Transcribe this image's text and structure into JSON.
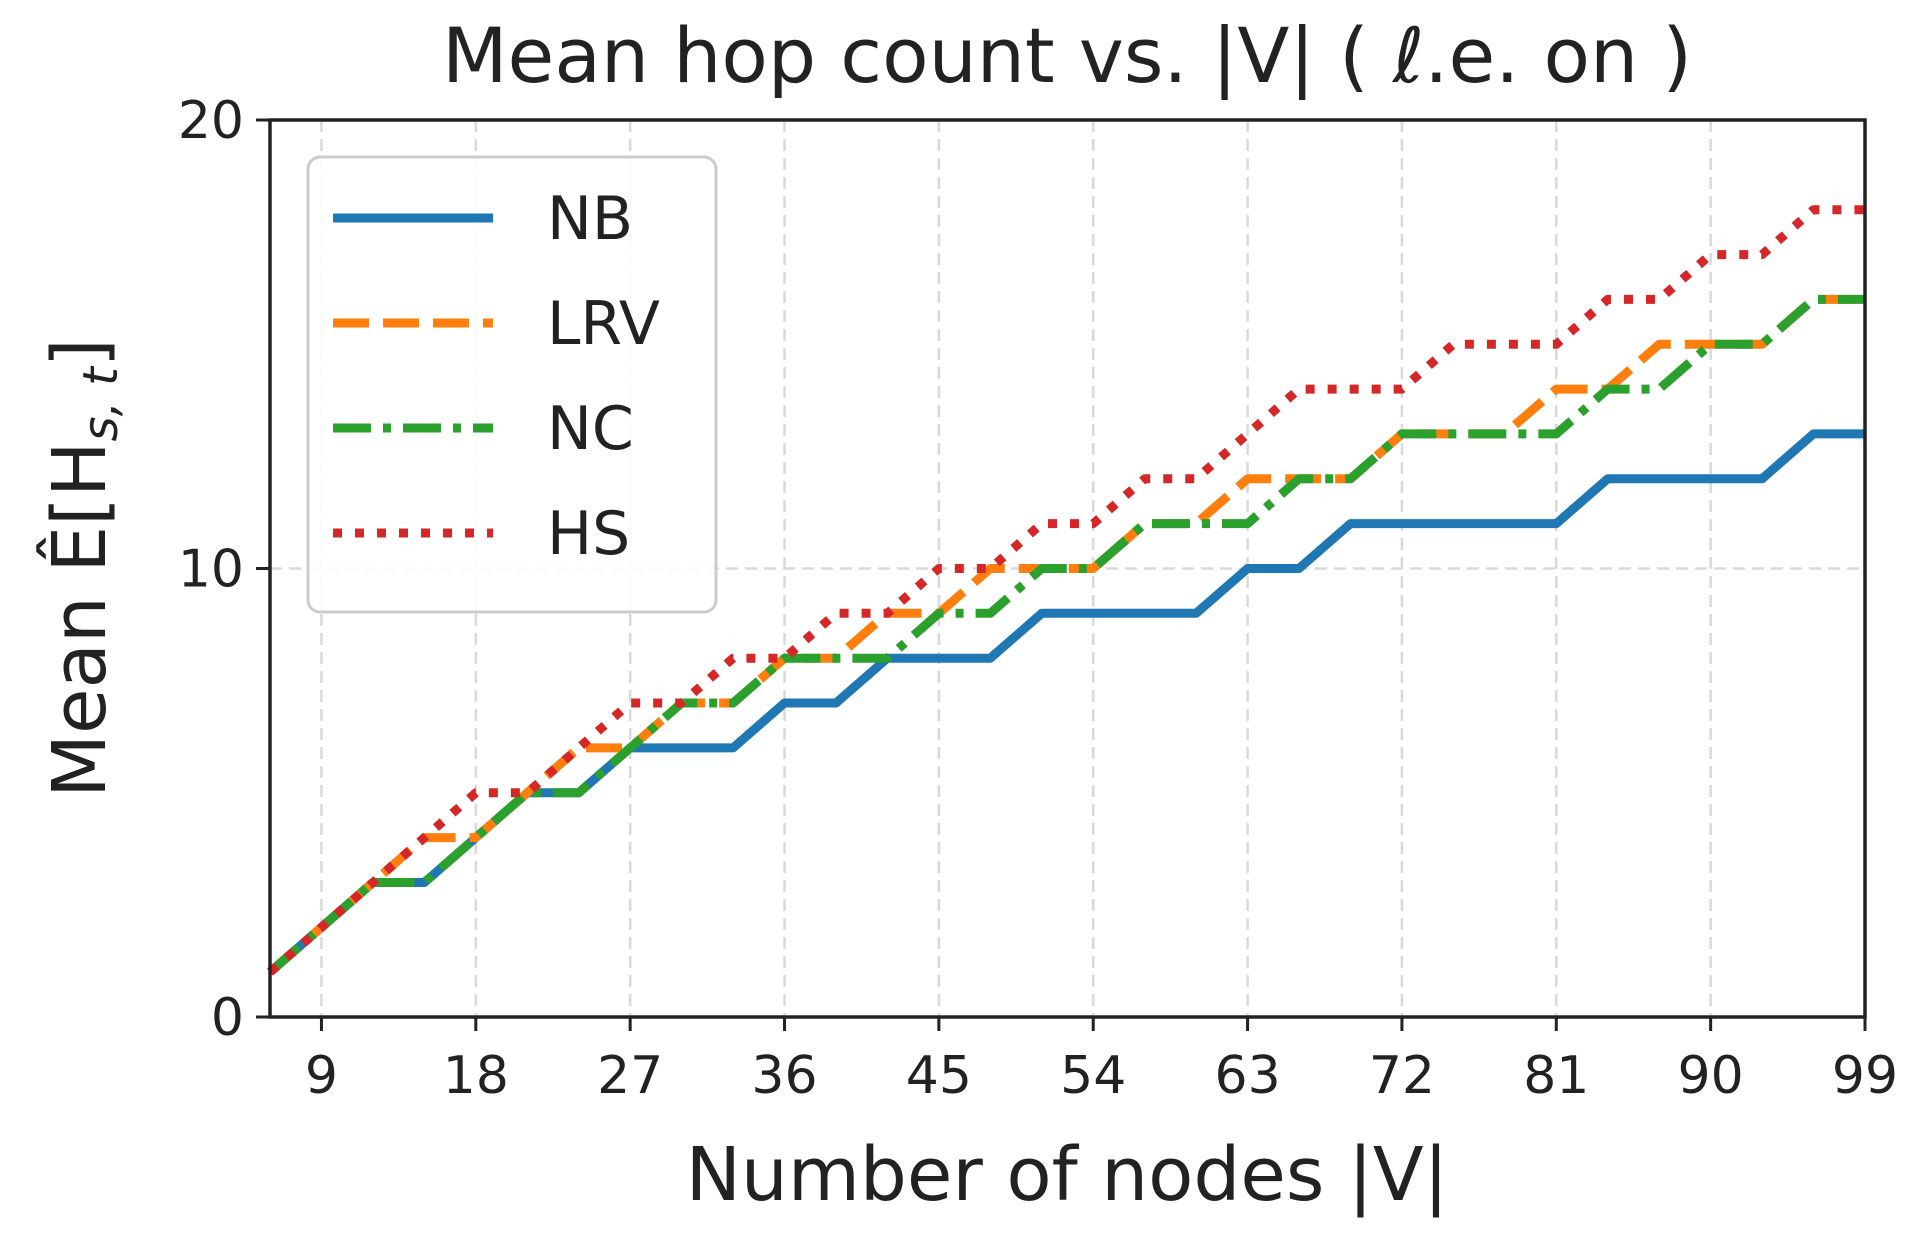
{
  "chart_data": {
    "type": "line",
    "title": "Mean hop count vs. |V| ( ℓ.e. on )",
    "xlabel": "Number of nodes |V|",
    "ylabel": "Mean Ê[H",
    "ylabel_sub": "s, t",
    "ylabel_close": "]",
    "xlim": [
      6,
      99
    ],
    "ylim": [
      0,
      20
    ],
    "xticks": [
      9,
      18,
      27,
      36,
      45,
      54,
      63,
      72,
      81,
      90,
      99
    ],
    "xtick_labels": [
      "9",
      "18",
      "27",
      "36",
      "45",
      "54",
      "63",
      "72",
      "81",
      "90",
      "99"
    ],
    "yticks": [
      0,
      10,
      20
    ],
    "ytick_labels": [
      "0",
      "10",
      "20"
    ],
    "grid": true,
    "legend_position": "top-left",
    "x": [
      6,
      9,
      12,
      15,
      18,
      21,
      24,
      27,
      30,
      33,
      36,
      39,
      42,
      45,
      48,
      51,
      54,
      57,
      60,
      63,
      66,
      69,
      72,
      75,
      78,
      81,
      84,
      87,
      90,
      93,
      96,
      99
    ],
    "series": [
      {
        "name": "NB",
        "color": "#1f77b4",
        "style": "solid",
        "values": [
          1,
          2,
          3,
          3,
          4,
          5,
          5,
          6,
          6,
          6,
          7,
          7,
          8,
          8,
          8,
          9,
          9,
          9,
          9,
          10,
          10,
          11,
          11,
          11,
          11,
          11,
          12,
          12,
          12,
          12,
          13,
          13
        ]
      },
      {
        "name": "LRV",
        "color": "#ff7f0e",
        "style": "dashed",
        "values": [
          1,
          2,
          3,
          4,
          4,
          5,
          6,
          6,
          7,
          7,
          8,
          8,
          9,
          9,
          10,
          10,
          10,
          11,
          11,
          12,
          12,
          12,
          13,
          13,
          13,
          14,
          14,
          15,
          15,
          15,
          16,
          16
        ]
      },
      {
        "name": "NC",
        "color": "#2ca02c",
        "style": "dashdot",
        "values": [
          1,
          2,
          3,
          3,
          4,
          5,
          5,
          6,
          7,
          7,
          8,
          8,
          8,
          9,
          9,
          10,
          10,
          11,
          11,
          11,
          12,
          12,
          13,
          13,
          13,
          13,
          14,
          14,
          15,
          15,
          16,
          16
        ]
      },
      {
        "name": "HS",
        "color": "#d62728",
        "style": "dotted",
        "values": [
          1,
          2,
          3,
          4,
          5,
          5,
          6,
          7,
          7,
          8,
          8,
          9,
          9,
          10,
          10,
          11,
          11,
          12,
          12,
          13,
          14,
          14,
          14,
          15,
          15,
          15,
          16,
          16,
          17,
          17,
          18,
          18
        ]
      }
    ]
  }
}
